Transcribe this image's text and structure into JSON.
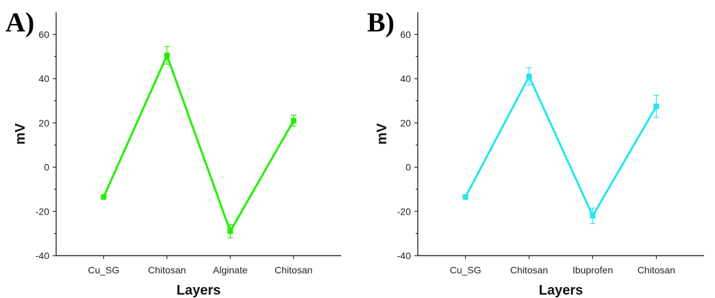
{
  "chart_data": [
    {
      "type": "line",
      "panel_label": "A)",
      "title": "",
      "xlabel": "Layers",
      "ylabel": "mV",
      "ylim": [
        -40,
        70
      ],
      "yticks": [
        -40,
        -20,
        0,
        20,
        40,
        60
      ],
      "grid": false,
      "categories": [
        "Cu_SG",
        "Chitosan",
        "Alginate",
        "Chitosan"
      ],
      "series": [
        {
          "color": "#22ee00",
          "values": [
            -13.5,
            50.5,
            -29,
            21
          ],
          "errors": [
            0.8,
            4,
            3,
            2.5
          ]
        }
      ]
    },
    {
      "type": "line",
      "panel_label": "B)",
      "title": "",
      "xlabel": "Layers",
      "ylabel": "mV",
      "ylim": [
        -40,
        70
      ],
      "yticks": [
        -40,
        -20,
        0,
        20,
        40,
        60
      ],
      "grid": false,
      "categories": [
        "Cu_SG",
        "Chitosan",
        "Ibuprofen",
        "Chitosan"
      ],
      "series": [
        {
          "color": "#22e5ee",
          "values": [
            -13.5,
            41,
            -22,
            27.5
          ],
          "errors": [
            0.8,
            4,
            3.5,
            5
          ]
        }
      ]
    }
  ]
}
